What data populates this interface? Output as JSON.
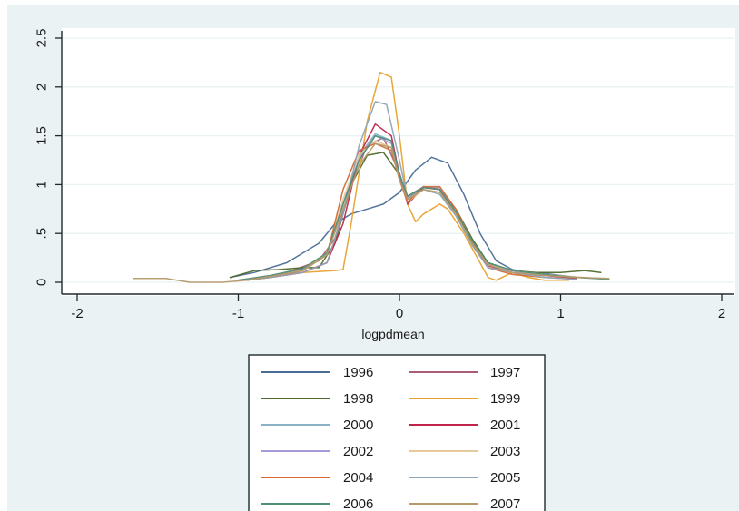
{
  "chart_data": {
    "type": "line",
    "title": "",
    "xlabel": "logpdmean",
    "ylabel": "",
    "xlim": [
      -2,
      2
    ],
    "ylim": [
      0,
      2.5
    ],
    "x_ticks": [
      "-2",
      "-1",
      "0",
      "1",
      "2"
    ],
    "y_ticks": [
      "0",
      ".5",
      "1",
      "1.5",
      "2",
      "2.5"
    ],
    "grid": true,
    "legend_position": "bottom",
    "series": [
      {
        "name": "1996",
        "color": "#4a6d96",
        "points": [
          [
            -1.05,
            0.05
          ],
          [
            -0.9,
            0.1
          ],
          [
            -0.7,
            0.2
          ],
          [
            -0.5,
            0.4
          ],
          [
            -0.4,
            0.6
          ],
          [
            -0.3,
            0.7
          ],
          [
            -0.2,
            0.75
          ],
          [
            -0.1,
            0.8
          ],
          [
            0.0,
            0.92
          ],
          [
            0.1,
            1.15
          ],
          [
            0.2,
            1.28
          ],
          [
            0.3,
            1.22
          ],
          [
            0.4,
            0.9
          ],
          [
            0.5,
            0.5
          ],
          [
            0.6,
            0.22
          ],
          [
            0.7,
            0.13
          ],
          [
            0.8,
            0.1
          ],
          [
            0.9,
            0.09
          ],
          [
            1.0,
            0.07
          ],
          [
            1.1,
            0.05
          ],
          [
            1.25,
            0.04
          ]
        ]
      },
      {
        "name": "1997",
        "color": "#a75d74",
        "points": [
          [
            -1.0,
            0.02
          ],
          [
            -0.85,
            0.05
          ],
          [
            -0.7,
            0.1
          ],
          [
            -0.5,
            0.22
          ],
          [
            -0.4,
            0.45
          ],
          [
            -0.3,
            1.0
          ],
          [
            -0.2,
            1.4
          ],
          [
            -0.1,
            1.48
          ],
          [
            0.0,
            1.12
          ],
          [
            0.05,
            0.85
          ],
          [
            0.15,
            0.98
          ],
          [
            0.25,
            0.95
          ],
          [
            0.35,
            0.7
          ],
          [
            0.45,
            0.4
          ],
          [
            0.55,
            0.2
          ],
          [
            0.7,
            0.1
          ],
          [
            0.9,
            0.08
          ],
          [
            1.1,
            0.05
          ]
        ]
      },
      {
        "name": "1998",
        "color": "#4f6c2d",
        "points": [
          [
            -1.05,
            0.05
          ],
          [
            -0.9,
            0.12
          ],
          [
            -0.75,
            0.13
          ],
          [
            -0.6,
            0.15
          ],
          [
            -0.5,
            0.15
          ],
          [
            -0.4,
            0.4
          ],
          [
            -0.3,
            1.0
          ],
          [
            -0.2,
            1.3
          ],
          [
            -0.1,
            1.33
          ],
          [
            0.0,
            1.1
          ],
          [
            0.05,
            0.88
          ],
          [
            0.15,
            0.98
          ],
          [
            0.25,
            0.95
          ],
          [
            0.35,
            0.75
          ],
          [
            0.45,
            0.45
          ],
          [
            0.55,
            0.2
          ],
          [
            0.7,
            0.12
          ],
          [
            0.85,
            0.1
          ],
          [
            1.0,
            0.1
          ],
          [
            1.15,
            0.12
          ],
          [
            1.25,
            0.1
          ]
        ]
      },
      {
        "name": "1999",
        "color": "#e8a12e",
        "points": [
          [
            -0.95,
            0.02
          ],
          [
            -0.8,
            0.05
          ],
          [
            -0.6,
            0.1
          ],
          [
            -0.4,
            0.12
          ],
          [
            -0.35,
            0.13
          ],
          [
            -0.3,
            0.6
          ],
          [
            -0.2,
            1.65
          ],
          [
            -0.12,
            2.15
          ],
          [
            -0.05,
            2.1
          ],
          [
            0.0,
            1.5
          ],
          [
            0.05,
            0.8
          ],
          [
            0.1,
            0.62
          ],
          [
            0.15,
            0.7
          ],
          [
            0.25,
            0.8
          ],
          [
            0.3,
            0.75
          ],
          [
            0.4,
            0.5
          ],
          [
            0.5,
            0.2
          ],
          [
            0.55,
            0.05
          ],
          [
            0.6,
            0.02
          ],
          [
            0.7,
            0.1
          ],
          [
            0.8,
            0.05
          ],
          [
            0.9,
            0.02
          ],
          [
            1.05,
            0.02
          ]
        ]
      },
      {
        "name": "2000",
        "color": "#89b3c5",
        "points": [
          [
            -1.0,
            0.02
          ],
          [
            -0.8,
            0.06
          ],
          [
            -0.6,
            0.12
          ],
          [
            -0.45,
            0.3
          ],
          [
            -0.35,
            0.8
          ],
          [
            -0.25,
            1.3
          ],
          [
            -0.15,
            1.52
          ],
          [
            -0.05,
            1.45
          ],
          [
            0.0,
            1.1
          ],
          [
            0.05,
            0.85
          ],
          [
            0.15,
            0.97
          ],
          [
            0.25,
            0.95
          ],
          [
            0.35,
            0.7
          ],
          [
            0.45,
            0.4
          ],
          [
            0.55,
            0.15
          ],
          [
            0.7,
            0.1
          ],
          [
            0.9,
            0.07
          ],
          [
            1.1,
            0.05
          ]
        ]
      },
      {
        "name": "2001",
        "color": "#c0244c",
        "points": [
          [
            -0.95,
            0.02
          ],
          [
            -0.8,
            0.05
          ],
          [
            -0.6,
            0.1
          ],
          [
            -0.45,
            0.2
          ],
          [
            -0.35,
            0.6
          ],
          [
            -0.25,
            1.3
          ],
          [
            -0.15,
            1.62
          ],
          [
            -0.05,
            1.5
          ],
          [
            0.0,
            1.1
          ],
          [
            0.05,
            0.8
          ],
          [
            0.15,
            0.97
          ],
          [
            0.25,
            0.95
          ],
          [
            0.35,
            0.72
          ],
          [
            0.45,
            0.4
          ],
          [
            0.55,
            0.17
          ],
          [
            0.7,
            0.1
          ],
          [
            0.9,
            0.07
          ],
          [
            1.1,
            0.04
          ]
        ]
      },
      {
        "name": "2002",
        "color": "#a99ad6",
        "points": [
          [
            -1.0,
            0.02
          ],
          [
            -0.8,
            0.07
          ],
          [
            -0.6,
            0.13
          ],
          [
            -0.45,
            0.3
          ],
          [
            -0.35,
            0.8
          ],
          [
            -0.25,
            1.28
          ],
          [
            -0.15,
            1.5
          ],
          [
            -0.05,
            1.42
          ],
          [
            0.0,
            1.1
          ],
          [
            0.05,
            0.87
          ],
          [
            0.15,
            0.98
          ],
          [
            0.25,
            0.97
          ],
          [
            0.35,
            0.72
          ],
          [
            0.45,
            0.42
          ],
          [
            0.55,
            0.18
          ],
          [
            0.7,
            0.1
          ],
          [
            0.9,
            0.08
          ],
          [
            1.1,
            0.05
          ]
        ]
      },
      {
        "name": "2003",
        "color": "#e6c99d",
        "points": [
          [
            -1.0,
            0.02
          ],
          [
            -0.8,
            0.06
          ],
          [
            -0.6,
            0.12
          ],
          [
            -0.45,
            0.3
          ],
          [
            -0.35,
            0.85
          ],
          [
            -0.25,
            1.3
          ],
          [
            -0.15,
            1.45
          ],
          [
            -0.05,
            1.38
          ],
          [
            0.0,
            1.05
          ],
          [
            0.05,
            0.82
          ],
          [
            0.15,
            0.95
          ],
          [
            0.25,
            0.92
          ],
          [
            0.35,
            0.7
          ],
          [
            0.45,
            0.4
          ],
          [
            0.55,
            0.18
          ],
          [
            0.7,
            0.12
          ],
          [
            0.9,
            0.08
          ],
          [
            1.15,
            0.05
          ]
        ]
      },
      {
        "name": "2004",
        "color": "#d66a35",
        "points": [
          [
            -1.0,
            0.02
          ],
          [
            -0.8,
            0.05
          ],
          [
            -0.6,
            0.12
          ],
          [
            -0.45,
            0.28
          ],
          [
            -0.35,
            0.95
          ],
          [
            -0.25,
            1.35
          ],
          [
            -0.15,
            1.42
          ],
          [
            -0.05,
            1.35
          ],
          [
            0.0,
            1.05
          ],
          [
            0.05,
            0.82
          ],
          [
            0.15,
            0.98
          ],
          [
            0.25,
            0.98
          ],
          [
            0.35,
            0.75
          ],
          [
            0.45,
            0.42
          ],
          [
            0.55,
            0.15
          ],
          [
            0.7,
            0.08
          ],
          [
            0.9,
            0.05
          ],
          [
            1.1,
            0.03
          ]
        ]
      },
      {
        "name": "2005",
        "color": "#8fa4b6",
        "points": [
          [
            -0.95,
            0.02
          ],
          [
            -0.8,
            0.05
          ],
          [
            -0.6,
            0.1
          ],
          [
            -0.45,
            0.2
          ],
          [
            -0.35,
            0.7
          ],
          [
            -0.25,
            1.4
          ],
          [
            -0.15,
            1.85
          ],
          [
            -0.08,
            1.82
          ],
          [
            0.0,
            1.25
          ],
          [
            0.05,
            0.85
          ],
          [
            0.15,
            0.95
          ],
          [
            0.25,
            0.9
          ],
          [
            0.35,
            0.68
          ],
          [
            0.45,
            0.38
          ],
          [
            0.55,
            0.15
          ],
          [
            0.7,
            0.1
          ],
          [
            0.9,
            0.05
          ],
          [
            1.1,
            0.03
          ]
        ]
      },
      {
        "name": "2006",
        "color": "#4f8f76",
        "points": [
          [
            -1.0,
            0.02
          ],
          [
            -0.8,
            0.07
          ],
          [
            -0.6,
            0.14
          ],
          [
            -0.45,
            0.3
          ],
          [
            -0.35,
            0.8
          ],
          [
            -0.25,
            1.25
          ],
          [
            -0.15,
            1.5
          ],
          [
            -0.05,
            1.45
          ],
          [
            0.0,
            1.1
          ],
          [
            0.05,
            0.88
          ],
          [
            0.15,
            0.97
          ],
          [
            0.25,
            0.95
          ],
          [
            0.35,
            0.72
          ],
          [
            0.45,
            0.43
          ],
          [
            0.55,
            0.2
          ],
          [
            0.7,
            0.12
          ],
          [
            0.9,
            0.08
          ],
          [
            1.1,
            0.05
          ],
          [
            1.3,
            0.03
          ]
        ]
      },
      {
        "name": "2007",
        "color": "#b59a6a",
        "points": [
          [
            -1.65,
            0.04
          ],
          [
            -1.45,
            0.04
          ],
          [
            -1.3,
            0.0
          ],
          [
            -1.1,
            0.0
          ],
          [
            -0.95,
            0.02
          ],
          [
            -0.8,
            0.06
          ],
          [
            -0.6,
            0.12
          ],
          [
            -0.45,
            0.28
          ],
          [
            -0.35,
            0.75
          ],
          [
            -0.25,
            1.2
          ],
          [
            -0.15,
            1.42
          ],
          [
            -0.05,
            1.38
          ],
          [
            0.0,
            1.05
          ],
          [
            0.05,
            0.85
          ],
          [
            0.15,
            0.95
          ],
          [
            0.25,
            0.92
          ],
          [
            0.35,
            0.7
          ],
          [
            0.45,
            0.4
          ],
          [
            0.55,
            0.18
          ],
          [
            0.7,
            0.1
          ],
          [
            0.9,
            0.07
          ],
          [
            1.1,
            0.05
          ],
          [
            1.3,
            0.04
          ]
        ]
      }
    ]
  }
}
